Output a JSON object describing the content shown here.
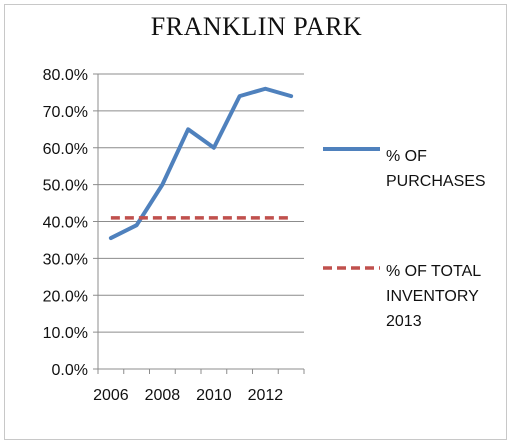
{
  "chart_data": {
    "type": "line",
    "title": "FRANKLIN PARK",
    "xlabel": "",
    "ylabel": "",
    "x_tick_labels": [
      "2006",
      "2008",
      "2010",
      "2012"
    ],
    "y_tick_labels": [
      "0.0%",
      "10.0%",
      "20.0%",
      "30.0%",
      "40.0%",
      "50.0%",
      "60.0%",
      "70.0%",
      "80.0%"
    ],
    "xlim": [
      2005.5,
      2013.5
    ],
    "ylim": [
      0,
      80
    ],
    "grid": "horizontal",
    "legend_position": "right",
    "series": [
      {
        "name": "% OF PURCHASES",
        "color": "#4f81bd",
        "style": "solid",
        "x": [
          2006,
          2007,
          2008,
          2009,
          2010,
          2011,
          2012,
          2013
        ],
        "y": [
          35.5,
          39.0,
          50.0,
          65.0,
          60.0,
          74.0,
          76.0,
          74.0
        ]
      },
      {
        "name": "% OF TOTAL INVENTORY 2013",
        "color": "#c0504d",
        "style": "dashed",
        "x": [
          2006,
          2007,
          2008,
          2009,
          2010,
          2011,
          2012,
          2013
        ],
        "y": [
          41,
          41,
          41,
          41,
          41,
          41,
          41,
          41
        ]
      }
    ]
  },
  "legend": {
    "purchases_label": "% OF\nPURCHASES",
    "inventory_label": " % OF TOTAL\nINVENTORY\n2013"
  }
}
